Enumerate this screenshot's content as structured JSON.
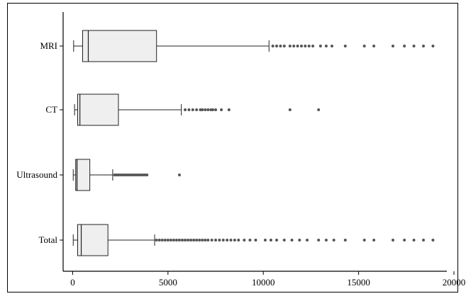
{
  "chart_data": {
    "type": "boxplot",
    "orientation": "horizontal",
    "title": "",
    "xlabel": "",
    "ylabel": "",
    "xlim": [
      -500,
      20000
    ],
    "xticks": [
      0,
      5000,
      10000,
      15000,
      20000
    ],
    "xtick_labels": [
      "0",
      "5000",
      "10000",
      "15000",
      "20000"
    ],
    "grid": false,
    "legend": "none",
    "colors": {
      "box_fill": "#efefef",
      "stroke": "#222222",
      "outlier": "#555555"
    },
    "categories": [
      "MRI",
      "CT",
      "Ultrasound",
      "Total"
    ],
    "boxes": [
      {
        "label": "MRI",
        "whisker_low": 50,
        "q1": 520,
        "median": 820,
        "q3": 4400,
        "whisker_high": 10300,
        "mean": 520,
        "outliers": [
          10500,
          10700,
          10900,
          11100,
          11400,
          11600,
          11800,
          12000,
          12200,
          12400,
          12600,
          13000,
          13300,
          13600,
          14300,
          15300,
          15800,
          16800,
          17400,
          17900,
          18400,
          18900
        ]
      },
      {
        "label": "CT",
        "whisker_low": 100,
        "q1": 260,
        "median": 380,
        "q3": 2400,
        "whisker_high": 5700,
        "mean": 260,
        "outliers": [
          5900,
          6100,
          6300,
          6500,
          6700,
          6800,
          6950,
          7100,
          7250,
          7350,
          7500,
          7800,
          8200,
          11400,
          12900
        ]
      },
      {
        "label": "Ultrasound",
        "whisker_low": 30,
        "q1": 160,
        "median": 230,
        "q3": 900,
        "whisker_high": 2100,
        "mean": 160,
        "outliers": [
          2200,
          2300,
          2400,
          2500,
          2600,
          2700,
          2800,
          2900,
          3000,
          3100,
          3200,
          3300,
          3400,
          3500,
          3600,
          3700,
          3800,
          3900,
          5600
        ]
      },
      {
        "label": "Total",
        "whisker_low": 30,
        "q1": 260,
        "median": 450,
        "q3": 1850,
        "whisker_high": 4300,
        "mean": 260,
        "outliers": [
          4400,
          4550,
          4700,
          4850,
          5000,
          5150,
          5300,
          5450,
          5600,
          5750,
          5900,
          6050,
          6200,
          6350,
          6500,
          6650,
          6800,
          6950,
          7100,
          7300,
          7500,
          7700,
          7900,
          8100,
          8300,
          8500,
          8700,
          9000,
          9300,
          9600,
          10100,
          10400,
          10700,
          11100,
          11500,
          11900,
          12300,
          12900,
          13300,
          13700,
          14300,
          15300,
          15800,
          16800,
          17400,
          17900,
          18400,
          18900
        ]
      }
    ]
  }
}
